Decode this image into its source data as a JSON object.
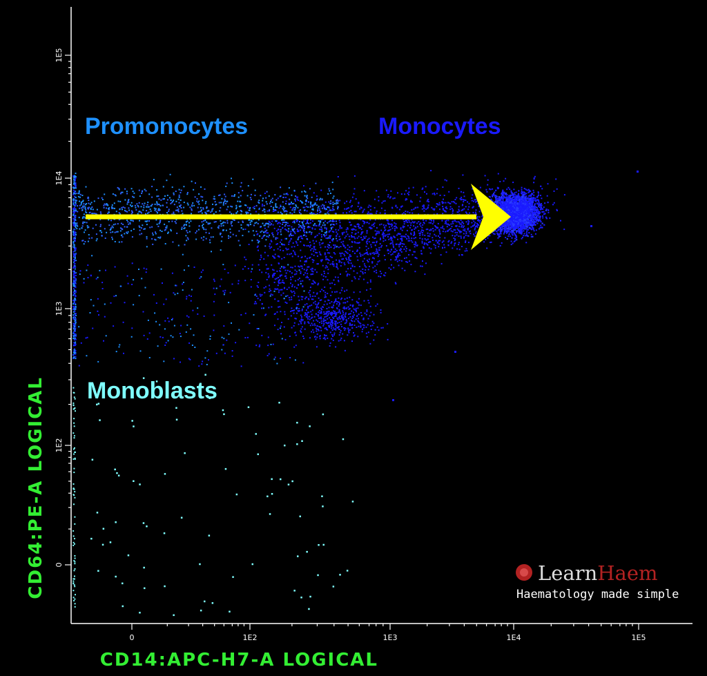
{
  "chart_data": {
    "type": "scatter",
    "title": "",
    "xlabel": "CD14:APC-H7-A LOGICAL",
    "ylabel": "CD64:PE-A LOGICAL",
    "x_scale": "logicle",
    "y_scale": "logicle",
    "x_ticks": [
      "0",
      "1E2",
      "1E3",
      "1E4",
      "1E5"
    ],
    "y_ticks": [
      "0",
      "1E2",
      "1E3",
      "1E4",
      "1E5"
    ],
    "grid": false,
    "populations": [
      {
        "name": "Promonocytes",
        "color": "#1e90ff",
        "x_range": [
          0,
          300
        ],
        "y_range": [
          2000,
          10000
        ]
      },
      {
        "name": "Monocytes",
        "color": "#1a1aff",
        "x_range": [
          300,
          20000
        ],
        "y_range": [
          800,
          12000
        ]
      },
      {
        "name": "Monoblasts",
        "color": "#7fffff",
        "x_range": [
          0,
          300
        ],
        "y_range": [
          0,
          500
        ]
      }
    ],
    "annotations": [
      {
        "type": "arrow",
        "from": [
          -10,
          5000
        ],
        "to": [
          10000,
          5000
        ],
        "color": "#ffff00"
      }
    ]
  },
  "colors": {
    "background": "#000000",
    "axis_title": "#33ee33",
    "arrow": "#ffff00",
    "promonocytes": "#1e90ff",
    "monocytes": "#1a1aff",
    "monoblasts": "#7fffff",
    "brand_red": "#b22222"
  },
  "labels": {
    "promonocytes": "Promonocytes",
    "monocytes": "Monocytes",
    "monoblasts": "Monoblasts"
  },
  "brand": {
    "name_part1": "Learn",
    "name_part2": "Haem",
    "tagline": "Haematology made simple",
    "icon": "red-blood-cell-icon"
  }
}
